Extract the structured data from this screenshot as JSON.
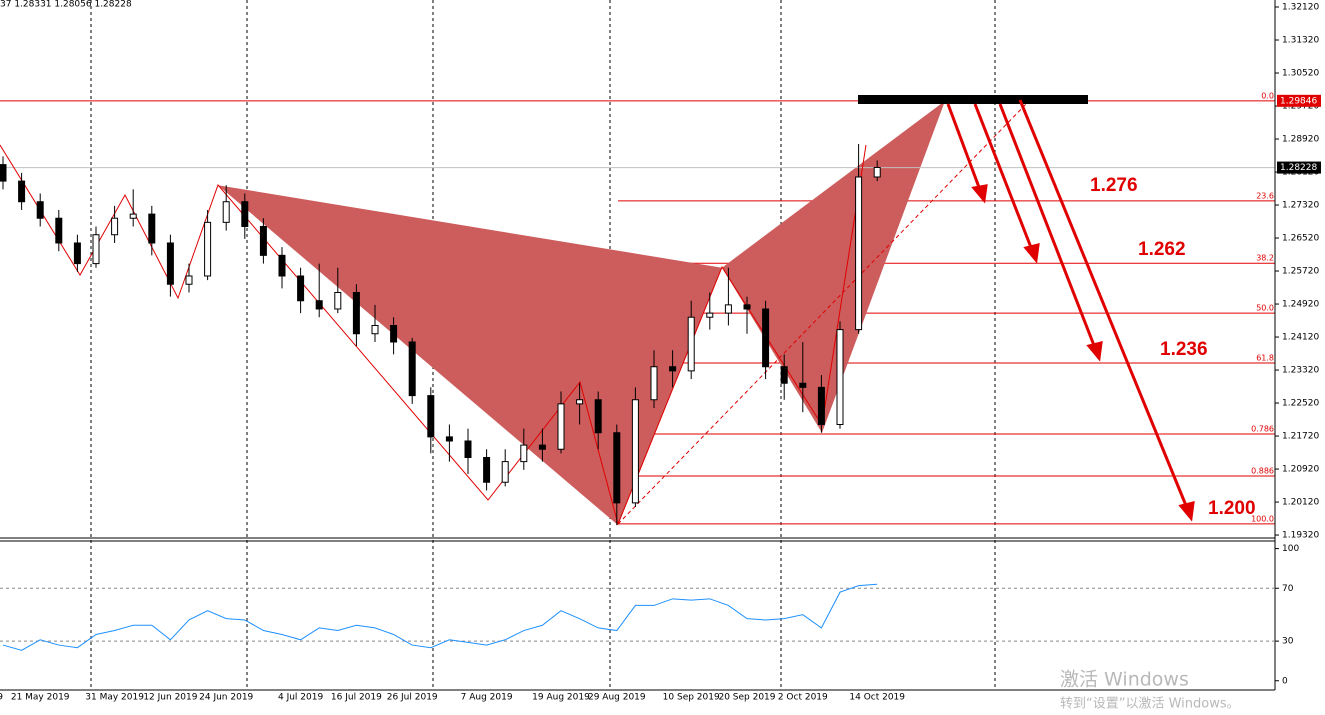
{
  "chart_data": [
    {
      "type": "candlestick",
      "header": "37 1.28331 1.28056 1.28228",
      "categories": [
        "9",
        null,
        "21 May 2019",
        null,
        null,
        null,
        "31 May 2019",
        null,
        null,
        "12 Jun 2019",
        null,
        null,
        "24 Jun 2019",
        null,
        null,
        null,
        "4 Jul 2019",
        null,
        null,
        "16 Jul 2019",
        null,
        null,
        "26 Jul 2019",
        null,
        null,
        null,
        "7 Aug 2019",
        null,
        null,
        null,
        "19 Aug 2019",
        null,
        null,
        "29 Aug 2019",
        null,
        null,
        null,
        "10 Sep 2019",
        null,
        null,
        "20 Sep 2019",
        null,
        null,
        "2 Oct 2019",
        null,
        null,
        null,
        "14 Oct 2019"
      ],
      "open": [
        1.283,
        1.279,
        1.274,
        1.27,
        1.264,
        1.259,
        1.266,
        1.27,
        1.271,
        1.264,
        1.254,
        1.256,
        1.269,
        1.274,
        1.268,
        1.261,
        1.256,
        1.25,
        1.248,
        1.252,
        1.242,
        1.244,
        1.24,
        1.227,
        1.217,
        1.216,
        1.212,
        1.206,
        1.211,
        1.215,
        1.214,
        1.225,
        1.226,
        1.218,
        1.201,
        1.226,
        1.234,
        1.233,
        1.246,
        1.247,
        1.249,
        1.248,
        1.234,
        1.23,
        1.229,
        1.22,
        1.243,
        1.28
      ],
      "high": [
        1.285,
        1.281,
        1.276,
        1.272,
        1.266,
        1.268,
        1.273,
        1.277,
        1.273,
        1.266,
        1.259,
        1.272,
        1.278,
        1.276,
        1.27,
        1.263,
        1.258,
        1.259,
        1.258,
        1.254,
        1.249,
        1.246,
        1.241,
        1.229,
        1.22,
        1.219,
        1.214,
        1.214,
        1.219,
        1.219,
        1.228,
        1.23,
        1.228,
        1.22,
        1.229,
        1.238,
        1.238,
        1.25,
        1.252,
        1.258,
        1.251,
        1.25,
        1.237,
        1.24,
        1.232,
        1.245,
        1.288,
        1.284
      ],
      "low": [
        1.277,
        1.272,
        1.268,
        1.262,
        1.257,
        1.258,
        1.264,
        1.268,
        1.261,
        1.251,
        1.252,
        1.255,
        1.267,
        1.265,
        1.259,
        1.253,
        1.247,
        1.246,
        1.247,
        1.239,
        1.24,
        1.237,
        1.225,
        1.213,
        1.211,
        1.208,
        1.204,
        1.205,
        1.209,
        1.211,
        1.213,
        1.22,
        1.214,
        1.1956,
        1.2,
        1.224,
        1.229,
        1.231,
        1.243,
        1.244,
        1.242,
        1.231,
        1.226,
        1.223,
        1.218,
        1.219,
        1.242,
        1.279
      ],
      "close": [
        1.279,
        1.274,
        1.27,
        1.264,
        1.259,
        1.266,
        1.27,
        1.271,
        1.264,
        1.254,
        1.256,
        1.269,
        1.274,
        1.268,
        1.261,
        1.256,
        1.25,
        1.248,
        1.252,
        1.242,
        1.244,
        1.24,
        1.227,
        1.217,
        1.216,
        1.212,
        1.206,
        1.211,
        1.215,
        1.214,
        1.225,
        1.226,
        1.218,
        1.201,
        1.226,
        1.234,
        1.233,
        1.246,
        1.247,
        1.249,
        1.248,
        1.234,
        1.23,
        1.229,
        1.22,
        1.243,
        1.28,
        1.2823
      ],
      "ylim": [
        1.192,
        1.3229
      ],
      "yticks": [
        {
          "value": 1.3212,
          "label": "1.32120"
        },
        {
          "value": 1.3132,
          "label": "1.31320"
        },
        {
          "value": 1.3052,
          "label": "1.30520"
        },
        {
          "value": 1.2972,
          "label": "1.29720"
        },
        {
          "value": 1.2892,
          "label": "1.28920"
        },
        {
          "value": 1.2812,
          "label": "1.28120"
        },
        {
          "value": 1.2732,
          "label": "1.27320"
        },
        {
          "value": 1.2652,
          "label": "1.26520"
        },
        {
          "value": 1.2572,
          "label": "1.25720"
        },
        {
          "value": 1.2492,
          "label": "1.24920"
        },
        {
          "value": 1.2412,
          "label": "1.24120"
        },
        {
          "value": 1.2332,
          "label": "1.23320"
        },
        {
          "value": 1.2252,
          "label": "1.22520"
        },
        {
          "value": 1.2172,
          "label": "1.21720"
        },
        {
          "value": 1.2092,
          "label": "1.20920"
        },
        {
          "value": 1.2012,
          "label": "1.20120"
        },
        {
          "value": 1.1932,
          "label": "1.19320"
        }
      ],
      "price_labels": [
        {
          "value": 1.29846,
          "label": "1.29846",
          "color": "#e00000"
        },
        {
          "value": 1.28228,
          "label": "1.28228",
          "color": "#000000"
        }
      ],
      "fib_levels": [
        {
          "value": 1.29846,
          "label": "0.0"
        },
        {
          "value": 1.2742,
          "label": "23.6"
        },
        {
          "value": 1.2591,
          "label": "38.2"
        },
        {
          "value": 1.247,
          "label": "50.0"
        },
        {
          "value": 1.2349,
          "label": "61.8"
        },
        {
          "value": 1.2177,
          "label": "0.786"
        },
        {
          "value": 1.2075,
          "label": "0.886"
        },
        {
          "value": 1.1959,
          "label": "100.0"
        }
      ],
      "pattern": [
        1.278,
        1.1956,
        1.258,
        1.218,
        1.29846
      ],
      "pattern_color": "#cd5c5c",
      "annotations": [
        "1.276",
        "1.262",
        "1.236",
        "1.200"
      ]
    },
    {
      "type": "line",
      "values": [
        27,
        23,
        31,
        27,
        25,
        35,
        38,
        42,
        42,
        31,
        46,
        53,
        47,
        46,
        38,
        35,
        31,
        40,
        38,
        42,
        40,
        35,
        27,
        25,
        31,
        29,
        27,
        31,
        38,
        42,
        53,
        47,
        40,
        38,
        57,
        57,
        62,
        61,
        62,
        57,
        47,
        46,
        47,
        50,
        40,
        67,
        72,
        73
      ],
      "color": "#1e90ff",
      "ylim": [
        -7,
        105
      ],
      "yticks": [
        100,
        70,
        30,
        0
      ]
    }
  ],
  "watermark": [
    "激活 Windows",
    "转到“设置”以激活 Windows。"
  ]
}
